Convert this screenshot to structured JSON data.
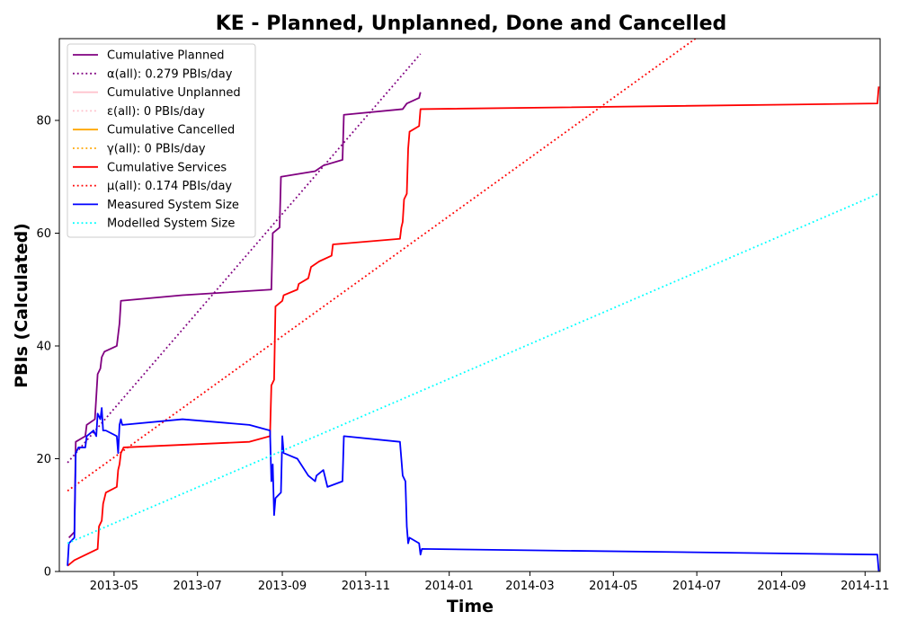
{
  "chart_data": {
    "type": "line",
    "title": "KE - Planned, Unplanned, Done  and Cancelled",
    "xlabel": "Time",
    "ylabel": "PBIs (Calculated)",
    "xlim": [
      "2013-03-22",
      "2014-11-12"
    ],
    "ylim": [
      0,
      94.5
    ],
    "x_ticks": [
      "2013-05",
      "2013-07",
      "2013-09",
      "2013-11",
      "2014-01",
      "2014-03",
      "2014-05",
      "2014-07",
      "2014-09",
      "2014-11"
    ],
    "y_ticks": [
      0,
      20,
      40,
      60,
      80
    ],
    "grid": false,
    "legend_position": "upper-left",
    "series": [
      {
        "name": "Cumulative Planned",
        "style": "solid",
        "color": "#800080",
        "points": [
          [
            "2013-03-29",
            6
          ],
          [
            "2013-04-02",
            7
          ],
          [
            "2013-04-03",
            23
          ],
          [
            "2013-04-10",
            24
          ],
          [
            "2013-04-11",
            26
          ],
          [
            "2013-04-17",
            27
          ],
          [
            "2013-04-18",
            31
          ],
          [
            "2013-04-19",
            35
          ],
          [
            "2013-04-21",
            36
          ],
          [
            "2013-04-22",
            38
          ],
          [
            "2013-04-24",
            39
          ],
          [
            "2013-05-03",
            40
          ],
          [
            "2013-05-04",
            42
          ],
          [
            "2013-05-05",
            44
          ],
          [
            "2013-05-06",
            48
          ],
          [
            "2013-06-20",
            49
          ],
          [
            "2013-08-24",
            50
          ],
          [
            "2013-08-25",
            60
          ],
          [
            "2013-08-30",
            61
          ],
          [
            "2013-08-31",
            70
          ],
          [
            "2013-09-25",
            71
          ],
          [
            "2013-10-01",
            72
          ],
          [
            "2013-10-15",
            73
          ],
          [
            "2013-10-16",
            81
          ],
          [
            "2013-11-28",
            82
          ],
          [
            "2013-12-01",
            83
          ],
          [
            "2013-12-10",
            84
          ],
          [
            "2013-12-11",
            85
          ]
        ]
      },
      {
        "name": "α(all): 0.279 PBIs/day",
        "style": "dotted",
        "color": "#800080",
        "points": [
          [
            "2013-03-28",
            19.3
          ],
          [
            "2013-12-11",
            91.8
          ]
        ]
      },
      {
        "name": "Cumulative Unplanned",
        "style": "solid",
        "color": "#ffc0cb",
        "points": []
      },
      {
        "name": "ε(all): 0 PBIs/day",
        "style": "dotted",
        "color": "#ffc0cb",
        "points": []
      },
      {
        "name": "Cumulative Cancelled",
        "style": "solid",
        "color": "#ffa500",
        "points": []
      },
      {
        "name": "γ(all): 0 PBIs/day",
        "style": "dotted",
        "color": "#ffa500",
        "points": []
      },
      {
        "name": "Cumulative Services",
        "style": "solid",
        "color": "#ff0000",
        "points": [
          [
            "2013-03-28",
            1
          ],
          [
            "2013-04-02",
            2
          ],
          [
            "2013-04-19",
            4
          ],
          [
            "2013-04-20",
            8
          ],
          [
            "2013-04-22",
            9
          ],
          [
            "2013-04-23",
            12
          ],
          [
            "2013-04-24",
            13
          ],
          [
            "2013-04-25",
            14
          ],
          [
            "2013-05-03",
            15
          ],
          [
            "2013-05-04",
            18
          ],
          [
            "2013-05-05",
            19
          ],
          [
            "2013-05-06",
            21
          ],
          [
            "2013-05-08",
            22
          ],
          [
            "2013-08-08",
            23
          ],
          [
            "2013-08-23",
            24
          ],
          [
            "2013-08-24",
            33
          ],
          [
            "2013-08-26",
            34
          ],
          [
            "2013-08-27",
            47
          ],
          [
            "2013-09-01",
            48
          ],
          [
            "2013-09-02",
            49
          ],
          [
            "2013-09-12",
            50
          ],
          [
            "2013-09-13",
            51
          ],
          [
            "2013-09-20",
            52
          ],
          [
            "2013-09-22",
            54
          ],
          [
            "2013-09-28",
            55
          ],
          [
            "2013-10-07",
            56
          ],
          [
            "2013-10-08",
            58
          ],
          [
            "2013-11-26",
            59
          ],
          [
            "2013-11-27",
            61
          ],
          [
            "2013-11-28",
            62
          ],
          [
            "2013-11-29",
            66
          ],
          [
            "2013-12-01",
            67
          ],
          [
            "2013-12-02",
            75
          ],
          [
            "2013-12-03",
            78
          ],
          [
            "2013-12-10",
            79
          ],
          [
            "2013-12-11",
            82
          ],
          [
            "2014-11-10",
            83
          ],
          [
            "2014-11-11",
            86
          ]
        ]
      },
      {
        "name": "μ(all): 0.174 PBIs/day",
        "style": "dotted",
        "color": "#ff0000",
        "points": [
          [
            "2013-03-28",
            14.3
          ],
          [
            "2014-06-30",
            94.5
          ]
        ]
      },
      {
        "name": "Measured System Size",
        "style": "solid",
        "color": "#0000ff",
        "points": [
          [
            "2013-03-28",
            1
          ],
          [
            "2013-03-29",
            5
          ],
          [
            "2013-04-02",
            6
          ],
          [
            "2013-04-03",
            21
          ],
          [
            "2013-04-05",
            22
          ],
          [
            "2013-04-10",
            22
          ],
          [
            "2013-04-11",
            24
          ],
          [
            "2013-04-16",
            25
          ],
          [
            "2013-04-18",
            24
          ],
          [
            "2013-04-19",
            28
          ],
          [
            "2013-04-21",
            27
          ],
          [
            "2013-04-22",
            29
          ],
          [
            "2013-04-23",
            25
          ],
          [
            "2013-04-25",
            25
          ],
          [
            "2013-05-03",
            24
          ],
          [
            "2013-05-04",
            21
          ],
          [
            "2013-05-05",
            26
          ],
          [
            "2013-05-06",
            27
          ],
          [
            "2013-05-07",
            26
          ],
          [
            "2013-06-20",
            27
          ],
          [
            "2013-08-08",
            26
          ],
          [
            "2013-08-23",
            25
          ],
          [
            "2013-08-24",
            16
          ],
          [
            "2013-08-25",
            19
          ],
          [
            "2013-08-26",
            10
          ],
          [
            "2013-08-27",
            13
          ],
          [
            "2013-08-31",
            14
          ],
          [
            "2013-09-01",
            24
          ],
          [
            "2013-09-02",
            21
          ],
          [
            "2013-09-12",
            20
          ],
          [
            "2013-09-20",
            17
          ],
          [
            "2013-09-25",
            16
          ],
          [
            "2013-09-26",
            17
          ],
          [
            "2013-10-01",
            18
          ],
          [
            "2013-10-04",
            15
          ],
          [
            "2013-10-15",
            16
          ],
          [
            "2013-10-16",
            24
          ],
          [
            "2013-11-26",
            23
          ],
          [
            "2013-11-27",
            20
          ],
          [
            "2013-11-28",
            17
          ],
          [
            "2013-11-30",
            16
          ],
          [
            "2013-12-01",
            8
          ],
          [
            "2013-12-02",
            5
          ],
          [
            "2013-12-03",
            6
          ],
          [
            "2013-12-10",
            5
          ],
          [
            "2013-12-11",
            3
          ],
          [
            "2013-12-12",
            4
          ],
          [
            "2014-11-10",
            3
          ],
          [
            "2014-11-11",
            0
          ]
        ]
      },
      {
        "name": "Modelled System Size",
        "style": "dotted",
        "color": "#00ffff",
        "points": [
          [
            "2013-03-28",
            5.0
          ],
          [
            "2014-11-11",
            67.0
          ]
        ]
      }
    ]
  }
}
